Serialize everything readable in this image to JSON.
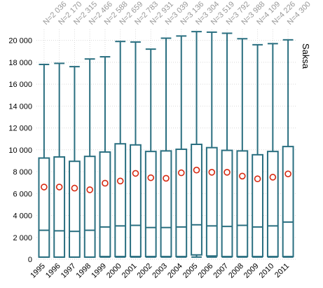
{
  "chart_data": {
    "type": "box",
    "panel_label": "Saksa",
    "categories": [
      "1995",
      "1996",
      "1997",
      "1998",
      "1999",
      "2000",
      "2001",
      "2002",
      "2003",
      "2004",
      "2005",
      "2006",
      "2007",
      "2008",
      "2009",
      "2010",
      "2011"
    ],
    "n_labels": [
      "N=2 036",
      "N=2 170",
      "N=2 315",
      "N=2 466",
      "N=2 588",
      "N=2 659",
      "N=2 783",
      "N=2 931",
      "N=3 039",
      "N=3 136",
      "N=3 304",
      "N=3 519",
      "N=3 792",
      "N=3 988",
      "N=4 109",
      "N=4 226",
      "N=4 300"
    ],
    "series": [
      {
        "boxes": [
          {
            "min": 200,
            "q1": 200,
            "median": 2650,
            "q3": 9250,
            "max": 17800,
            "mean": 6600
          },
          {
            "min": 200,
            "q1": 200,
            "median": 2600,
            "q3": 9350,
            "max": 17900,
            "mean": 6600
          },
          {
            "min": 200,
            "q1": 200,
            "median": 2550,
            "q3": 8950,
            "max": 17600,
            "mean": 6500
          },
          {
            "min": 200,
            "q1": 200,
            "median": 2650,
            "q3": 9400,
            "max": 18300,
            "mean": 6350
          },
          {
            "min": 200,
            "q1": 250,
            "median": 2950,
            "q3": 9800,
            "max": 18500,
            "mean": 6950
          },
          {
            "min": 200,
            "q1": 250,
            "median": 3050,
            "q3": 10550,
            "max": 19900,
            "mean": 7150
          },
          {
            "min": 200,
            "q1": 250,
            "median": 3100,
            "q3": 10450,
            "max": 19850,
            "mean": 7850
          },
          {
            "min": 200,
            "q1": 250,
            "median": 2900,
            "q3": 9850,
            "max": 19200,
            "mean": 7450
          },
          {
            "min": 200,
            "q1": 250,
            "median": 2900,
            "q3": 9900,
            "max": 20200,
            "mean": 7400
          },
          {
            "min": 200,
            "q1": 250,
            "median": 2950,
            "q3": 10050,
            "max": 20400,
            "mean": 7900
          },
          {
            "min": 200,
            "q1": 400,
            "median": 3150,
            "q3": 10500,
            "max": 20800,
            "mean": 8150
          },
          {
            "min": 200,
            "q1": 300,
            "median": 3050,
            "q3": 10200,
            "max": 20750,
            "mean": 7950
          },
          {
            "min": 200,
            "q1": 250,
            "median": 3000,
            "q3": 9950,
            "max": 20650,
            "mean": 7950
          },
          {
            "min": 200,
            "q1": 250,
            "median": 3100,
            "q3": 9900,
            "max": 20150,
            "mean": 7600
          },
          {
            "min": 200,
            "q1": 250,
            "median": 2950,
            "q3": 9550,
            "max": 19600,
            "mean": 7350
          },
          {
            "min": 200,
            "q1": 250,
            "median": 3050,
            "q3": 9850,
            "max": 19700,
            "mean": 7500
          },
          {
            "min": 200,
            "q1": 250,
            "median": 3400,
            "q3": 10300,
            "max": 20050,
            "mean": 7800
          }
        ]
      }
    ],
    "y_ticks": [
      0,
      2000,
      4000,
      6000,
      8000,
      10000,
      12000,
      14000,
      16000,
      18000,
      20000
    ],
    "y_tick_labels": [
      "0",
      "2 000",
      "4 000",
      "6 000",
      "8 000",
      "10 000",
      "12 000",
      "14 000",
      "16 000",
      "18 000",
      "20 000"
    ],
    "ylim": [
      0,
      21000
    ],
    "grid": true,
    "colors": {
      "box": "#2a6f80",
      "mean_marker": "#d62a12",
      "grid": "#d9d9d9",
      "n_label": "#999999"
    }
  }
}
